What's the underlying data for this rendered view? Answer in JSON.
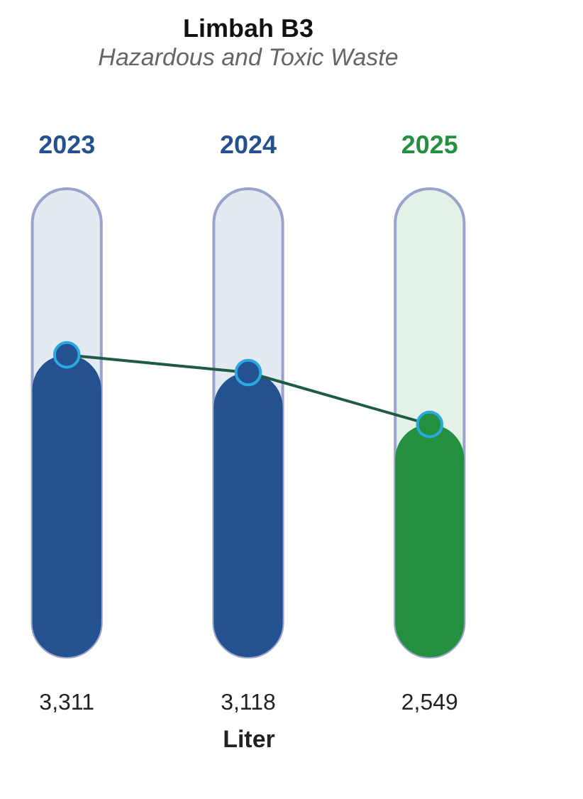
{
  "chart_data": {
    "type": "bar",
    "title": "Limbah B3",
    "subtitle": "Hazardous and Toxic Waste",
    "xlabel": "Liter",
    "categories": [
      "2023",
      "2024",
      "2025"
    ],
    "series": [
      {
        "colors": [
          "#245190",
          "#245190",
          "#23903f"
        ],
        "values": [
          3311,
          3118,
          2549
        ],
        "value_labels": [
          "3,311",
          "3,118",
          "2,549"
        ]
      },
      {
        "type": "line",
        "color": "#1f5a45",
        "marker": "circle",
        "values": [
          3311,
          3118,
          2549
        ]
      }
    ]
  }
}
